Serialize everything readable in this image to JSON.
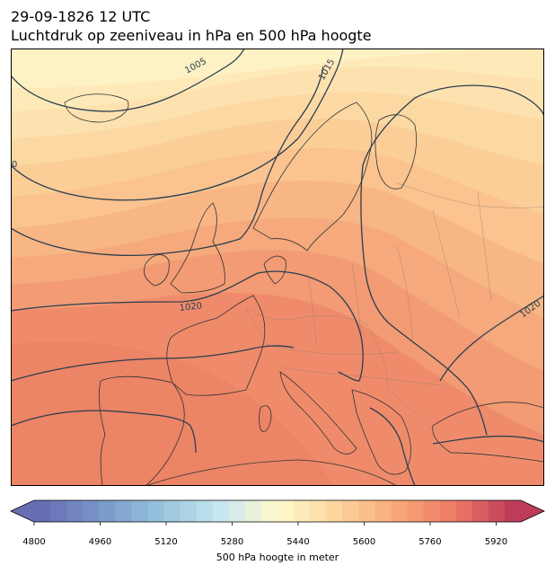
{
  "header": {
    "date_line": "29-09-1826 12 UTC",
    "title_line": "Luchtdruk op zeeniveau in hPa en 500 hPa hoogte"
  },
  "map": {
    "contour_labels": [
      {
        "id": "iso-1005",
        "text": "1005"
      },
      {
        "id": "iso-1015",
        "text": "1015"
      },
      {
        "id": "iso-1010-edge",
        "text": "0"
      },
      {
        "id": "iso-1020-west",
        "text": "1020"
      },
      {
        "id": "iso-1020-east",
        "text": "1020"
      }
    ],
    "colors": {
      "coast": "#333333",
      "borders": "#8a7f74",
      "isobars": "#2c3e50"
    }
  },
  "colorbar": {
    "label": "500 hPa hoogte in meter",
    "min": 4800,
    "max": 5980,
    "step": 40,
    "ticks": [
      "4800",
      "4960",
      "5120",
      "5280",
      "5440",
      "5600",
      "5760",
      "5920"
    ]
  }
}
